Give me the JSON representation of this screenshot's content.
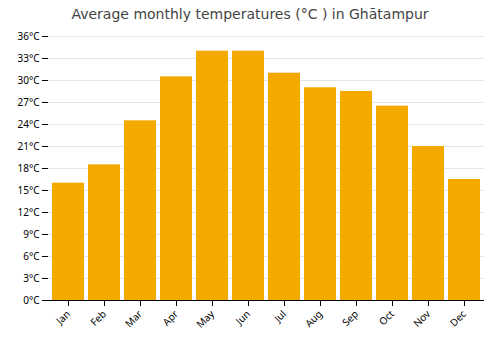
{
  "chart_data": {
    "type": "bar",
    "title": "Average monthly temperatures (°C ) in Ghātampur",
    "categories": [
      "Jan",
      "Feb",
      "Mar",
      "Apr",
      "May",
      "Jun",
      "Jul",
      "Aug",
      "Sep",
      "Oct",
      "Nov",
      "Dec"
    ],
    "values": [
      16.0,
      18.5,
      24.5,
      30.5,
      34.0,
      34.0,
      31.0,
      29.0,
      28.5,
      26.5,
      21.0,
      16.5
    ],
    "color": "#F5A800",
    "ylim": [
      0,
      36
    ],
    "yticks": [
      {
        "value": 0,
        "label": "0°C"
      },
      {
        "value": 3,
        "label": "3°C"
      },
      {
        "value": 6,
        "label": "6°C"
      },
      {
        "value": 9,
        "label": "9°C"
      },
      {
        "value": 12,
        "label": "12°C"
      },
      {
        "value": 15,
        "label": "15°C"
      },
      {
        "value": 18,
        "label": "18°C"
      },
      {
        "value": 21,
        "label": "21°C"
      },
      {
        "value": 24,
        "label": "24°C"
      },
      {
        "value": 27,
        "label": "27°C"
      },
      {
        "value": 30,
        "label": "30°C"
      },
      {
        "value": 33,
        "label": "33°C"
      },
      {
        "value": 36,
        "label": "36°C"
      }
    ],
    "grid": true
  }
}
